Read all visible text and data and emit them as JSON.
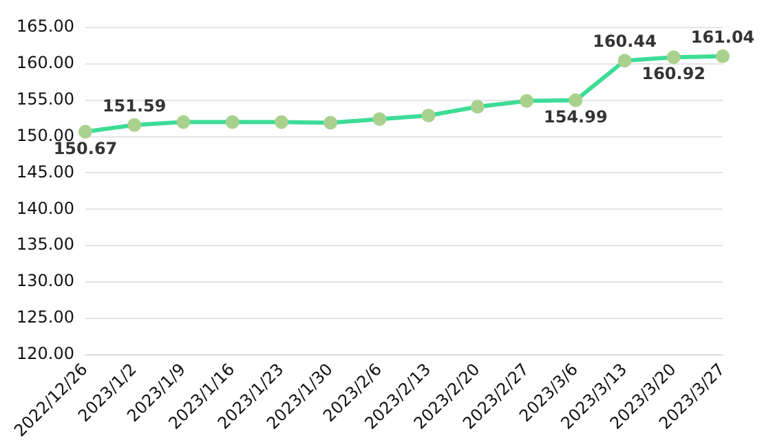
{
  "chart_data": {
    "type": "line",
    "categories": [
      "2022/12/26",
      "2023/1/2",
      "2023/1/9",
      "2023/1/16",
      "2023/1/23",
      "2023/1/30",
      "2023/2/6",
      "2023/2/13",
      "2023/2/20",
      "2023/2/27",
      "2023/3/6",
      "2023/3/13",
      "2023/3/20",
      "2023/3/27"
    ],
    "series": [
      {
        "color": "#3ddc97",
        "colors": [
          "#a9d18e",
          "#a9d18e",
          "#a9d18e",
          "#a9d18e",
          "#a9d18e",
          "#a9d18e",
          "#a9d18e",
          "#a9d18e",
          "#a9d18e",
          "#a9d18e",
          "#a9d18e",
          "#a9d18e",
          "#a9d18e",
          "#a9d18e"
        ],
        "values": [
          150.67,
          151.59,
          152.0,
          152.0,
          152.0,
          151.9,
          152.4,
          152.9,
          154.1,
          154.9,
          154.99,
          160.44,
          160.92,
          161.04
        ],
        "value_labels": [
          "150.67",
          "151.59",
          null,
          null,
          null,
          null,
          null,
          null,
          null,
          null,
          "154.99",
          "160.44",
          "160.92",
          "161.04"
        ]
      }
    ],
    "ylim": [
      120,
      165
    ],
    "yticks": [
      {
        "value": 120,
        "label": "120.00"
      },
      {
        "value": 125,
        "label": "125.00"
      },
      {
        "value": 130,
        "label": "130.00"
      },
      {
        "value": 135,
        "label": "135.00"
      },
      {
        "value": 140,
        "label": "140.00"
      },
      {
        "value": 145,
        "label": "145.00"
      },
      {
        "value": 150,
        "label": "150.00"
      },
      {
        "value": 155,
        "label": "155.00"
      },
      {
        "value": 160,
        "label": "160.00"
      },
      {
        "value": 165,
        "label": "165.00"
      }
    ],
    "grid": "y",
    "legend": false,
    "marker": "circle",
    "line_style": "solid"
  }
}
